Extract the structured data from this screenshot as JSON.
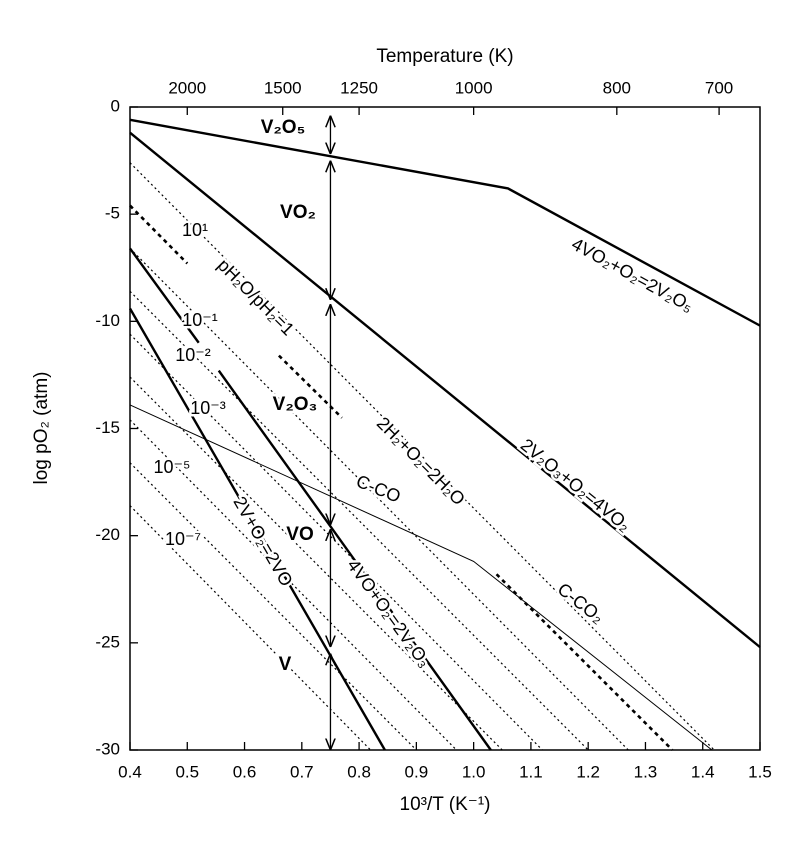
{
  "chart_data": {
    "type": "line",
    "xlabel": "10³/T (K⁻¹)",
    "ylabel": "log pO₂ (atm)",
    "x2label": "Temperature (K)",
    "xlim": [
      0.4,
      1.5
    ],
    "ylim": [
      -30,
      0
    ],
    "xticks": [
      0.4,
      0.5,
      0.6,
      0.7,
      0.8,
      0.9,
      {
        "value": 1,
        "label": "1.0"
      },
      1.1,
      1.2,
      1.3,
      1.4,
      1.5
    ],
    "yticks": [
      0,
      -5,
      -10,
      -15,
      -20,
      -25,
      -30
    ],
    "x2ticks": [
      2000,
      1500,
      1250,
      1000,
      800,
      700
    ],
    "series": [
      {
        "name": "4VO₂+O₂=2V₂O₅",
        "color": "#000000",
        "linestyle": "thick",
        "x": [
          0.4,
          1.06,
          1.5
        ],
        "values": [
          -0.6,
          -3.8,
          -10.2
        ]
      },
      {
        "name": "2V₂O₃+O₂=4VO₂",
        "color": "#000000",
        "linestyle": "thick",
        "x": [
          0.4,
          1.5
        ],
        "values": [
          -1.2,
          -25.2
        ]
      },
      {
        "name": "4VO+O₂=2V₂O₃",
        "color": "#000000",
        "linestyle": "thick",
        "x": [
          0.4,
          0.52,
          0.54,
          0.555,
          1.03
        ],
        "values": [
          -6.6,
          -11.0,
          null,
          -12.3,
          -30
        ]
      },
      {
        "name": "2V+O₂=2VO",
        "color": "#000000",
        "linestyle": "thick",
        "x": [
          0.4,
          0.845
        ],
        "values": [
          -9.4,
          -30
        ]
      },
      {
        "name": "pH₂O/pH₂=1",
        "color": "#000000",
        "linestyle": "dashed",
        "x": [
          0.4,
          0.5,
          0.52,
          0.66,
          0.77,
          0.8,
          1.04,
          1.347
        ],
        "values": [
          -4.6,
          -7.3,
          null,
          -11.6,
          -14.5,
          null,
          -21.8,
          -30
        ]
      },
      {
        "name": "10¹",
        "color": "#000000",
        "linestyle": "dotted",
        "x": [
          0.4,
          1.42
        ],
        "values": [
          -2.6,
          -30
        ]
      },
      {
        "name": "10⁻¹",
        "color": "#000000",
        "linestyle": "dotted",
        "x": [
          0.4,
          1.27
        ],
        "values": [
          -6.6,
          -30
        ]
      },
      {
        "name": "10⁻²",
        "color": "#000000",
        "linestyle": "dotted",
        "x": [
          0.4,
          1.2
        ],
        "values": [
          -8.6,
          -30
        ]
      },
      {
        "name": "10⁻³",
        "color": "#000000",
        "linestyle": "dotted",
        "x": [
          0.4,
          1.12
        ],
        "values": [
          -10.6,
          -30
        ]
      },
      {
        "color": "#000000",
        "linestyle": "dotted",
        "x": [
          0.4,
          1.05
        ],
        "values": [
          -12.6,
          -30
        ]
      },
      {
        "name": "10⁻⁵",
        "color": "#000000",
        "linestyle": "dotted",
        "x": [
          0.4,
          0.97
        ],
        "values": [
          -14.6,
          -30
        ]
      },
      {
        "color": "#000000",
        "linestyle": "dotted",
        "x": [
          0.4,
          0.9
        ],
        "values": [
          -16.6,
          -30
        ]
      },
      {
        "name": "10⁻⁷",
        "color": "#000000",
        "linestyle": "dotted",
        "x": [
          0.4,
          0.82
        ],
        "values": [
          -18.6,
          -30
        ]
      },
      {
        "color": "#000000",
        "linestyle": "thin",
        "x": [
          0.4,
          1.0,
          1.416
        ],
        "values": [
          -13.9,
          -21.2,
          -30
        ]
      }
    ],
    "annotations": [
      "2H₂+O₂=2H₂O",
      "C-CO",
      "C-CO₂"
    ],
    "region_x": 0.75,
    "regions": [
      {
        "label": "V₂O₅",
        "range": [
          -0.4,
          -2.2
        ]
      },
      {
        "label": "VO₂",
        "range": [
          -2.5,
          -9.0
        ]
      },
      {
        "label": "V₂O₃",
        "range": [
          -9.2,
          -19.5
        ]
      },
      {
        "label": "VO",
        "range": [
          -19.7,
          -25.2
        ]
      },
      {
        "label": "V",
        "range": [
          -25.5,
          -30
        ]
      }
    ]
  }
}
